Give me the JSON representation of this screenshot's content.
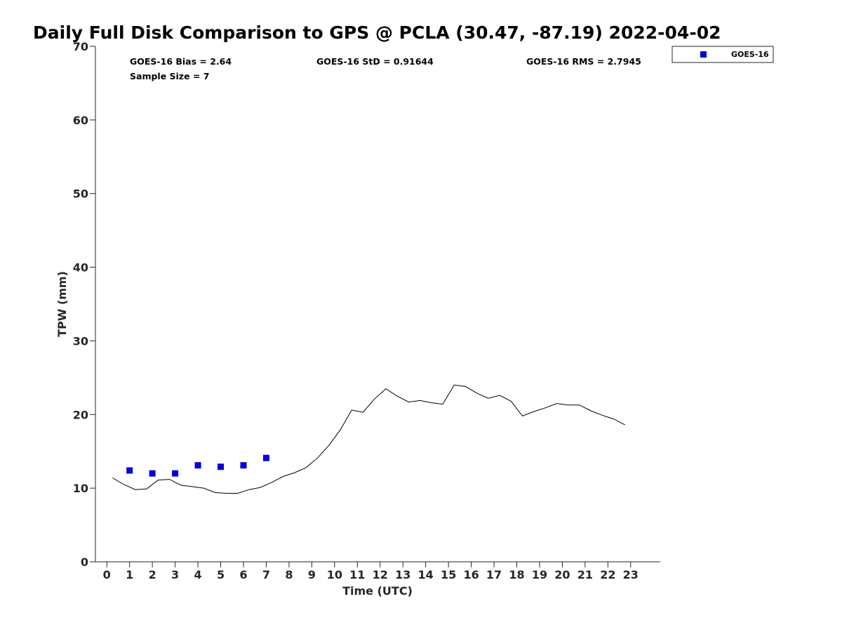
{
  "chart_data": {
    "type": "line",
    "title": "Daily Full Disk Comparison to GPS @ PCLA (30.47, -87.19) 2022-04-02",
    "xlabel": "Time (UTC)",
    "ylabel": "TPW (mm)",
    "xlim": [
      -0.5,
      24.3
    ],
    "ylim": [
      0,
      70
    ],
    "xticks": [
      0,
      1,
      2,
      3,
      4,
      5,
      6,
      7,
      8,
      9,
      10,
      11,
      12,
      13,
      14,
      15,
      16,
      17,
      18,
      19,
      20,
      21,
      22,
      23
    ],
    "yticks": [
      0,
      10,
      20,
      30,
      40,
      50,
      60,
      70
    ],
    "grid": false,
    "legend_position": "top-right",
    "stats": {
      "bias": "GOES-16 Bias = 2.64",
      "sample_size": "Sample Size = 7",
      "std": "GOES-16 StD = 0.91644",
      "rms": "GOES-16 RMS = 2.7945"
    },
    "series": [
      {
        "kind": "line",
        "color": "#000000",
        "x": [
          0.25,
          0.75,
          1.25,
          1.75,
          2.25,
          2.75,
          3.25,
          3.75,
          4.25,
          4.75,
          5.25,
          5.75,
          6.25,
          6.75,
          7.25,
          7.75,
          8.25,
          8.75,
          9.25,
          9.75,
          10.25,
          10.75,
          11.25,
          11.75,
          12.25,
          12.75,
          13.25,
          13.75,
          14.25,
          14.75,
          15.25,
          15.75,
          16.25,
          16.75,
          17.25,
          17.75,
          18.25,
          18.75,
          19.25,
          19.75,
          20.25,
          20.75,
          21.25,
          21.75,
          22.25,
          22.75
        ],
        "y": [
          11.4,
          10.5,
          9.8,
          9.9,
          11.1,
          11.2,
          10.4,
          10.2,
          10.0,
          9.4,
          9.3,
          9.3,
          9.8,
          10.1,
          10.8,
          11.6,
          12.1,
          12.8,
          14.1,
          15.8,
          17.9,
          20.6,
          20.3,
          22.1,
          23.5,
          22.5,
          21.7,
          21.9,
          21.6,
          21.4,
          24.0,
          23.8,
          22.9,
          22.2,
          22.6,
          21.8,
          19.8,
          20.4,
          20.9,
          21.5,
          21.3,
          21.3,
          20.5,
          19.9,
          19.4,
          18.6
        ]
      },
      {
        "name": "GOES-16",
        "kind": "scatter",
        "marker": "square",
        "color": "#0000dd",
        "x": [
          1,
          2,
          3,
          4,
          5,
          6,
          7
        ],
        "y": [
          12.4,
          12.0,
          12.0,
          13.1,
          12.9,
          13.1,
          14.1
        ]
      }
    ]
  }
}
